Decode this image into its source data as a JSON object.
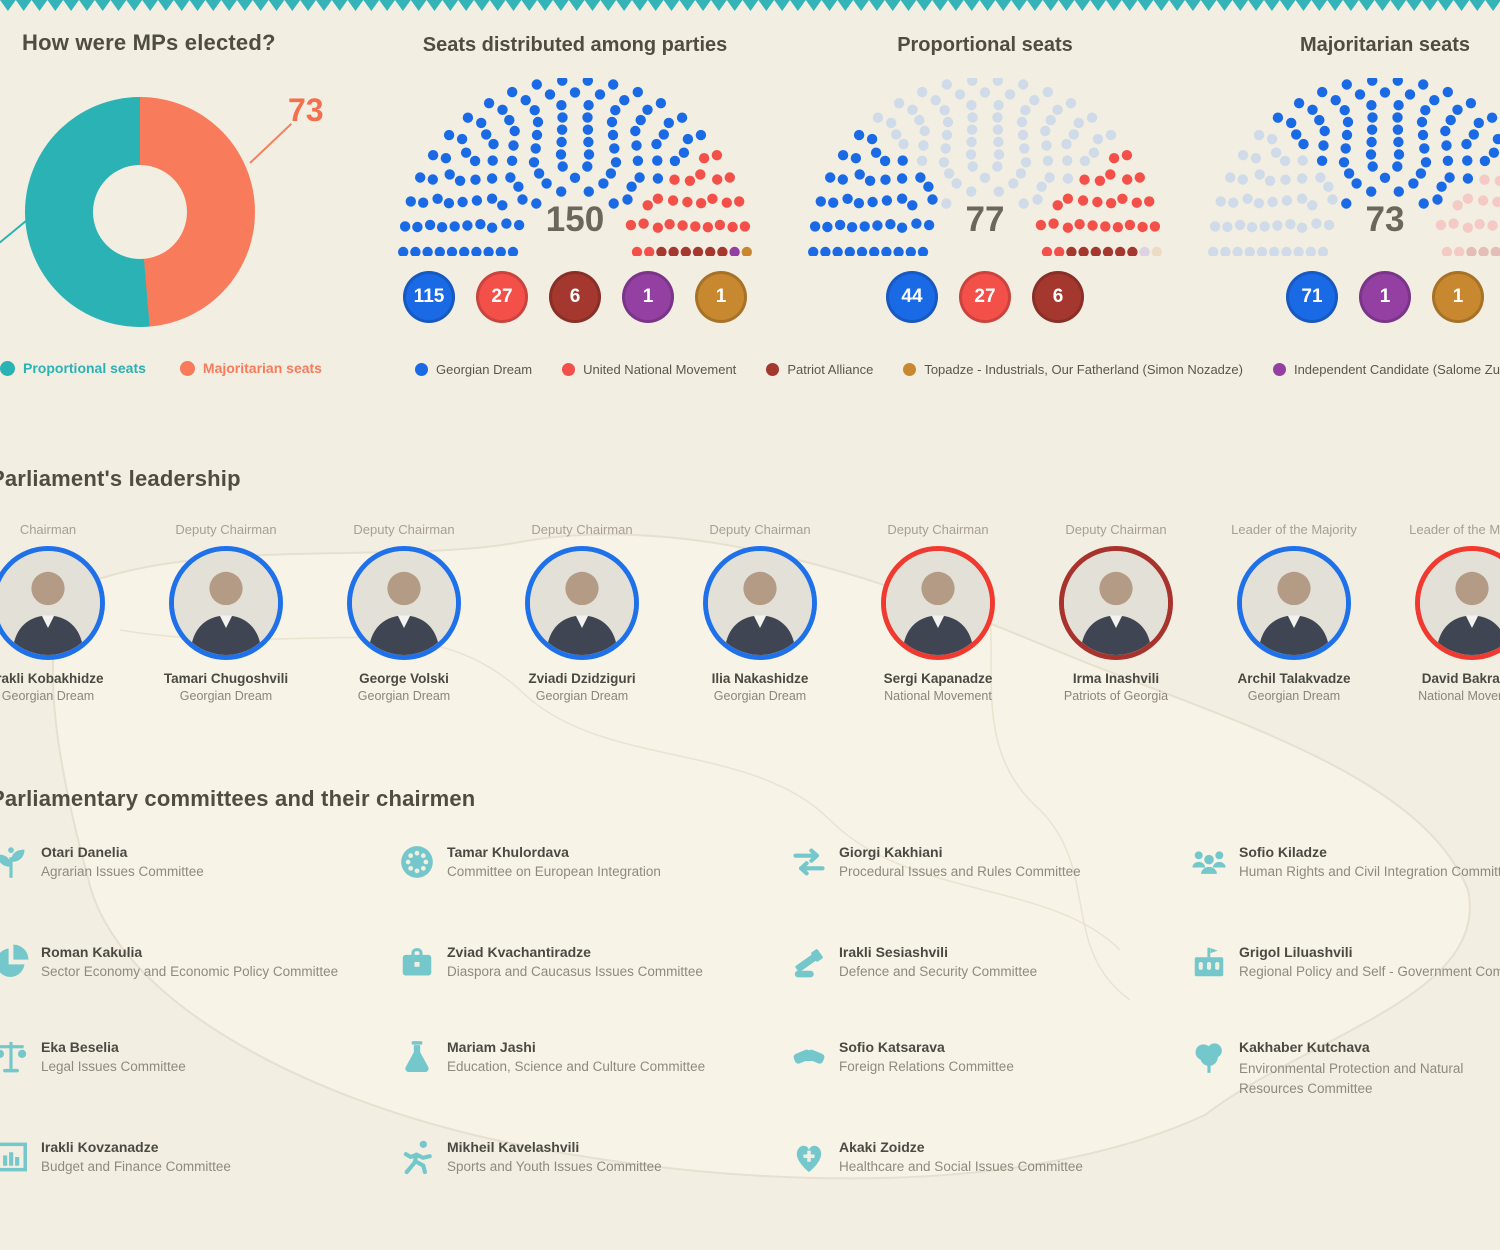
{
  "colors": {
    "background": "#f2eee2",
    "teal": "#2ab2b5",
    "salmon": "#f87b5b",
    "callout_orange": "#f46f4b",
    "blue": "#1a6ae6",
    "red": "#f4504a",
    "dark_red": "#a4382f",
    "purple": "#9340a2",
    "orange": "#c8882f",
    "faded_blue": "#cfdbe9",
    "faded_red": "#f5c9c4",
    "faded_dark_red": "#e2beb6",
    "faded_purple": "#dcd2e2",
    "faded_orange": "#ecdcc4",
    "icon_teal": "#74c7cb",
    "zigzag_teal": "#35b4b8"
  },
  "chart_data": [
    {
      "type": "donut",
      "title": "How were MPs elected?",
      "slices": [
        {
          "label": "Proportional seats",
          "value": 77,
          "color": "#2ab2b5"
        },
        {
          "label": "Majoritarian seats",
          "value": 73,
          "color": "#f87b5b"
        }
      ],
      "callout": {
        "text": "73",
        "color": "#f46f4b"
      }
    },
    {
      "type": "parliament",
      "title": "Seats distributed among parties",
      "center_label": "150",
      "total": 150,
      "groups": [
        {
          "label": "Georgian Dream",
          "count": 115,
          "color": "#1a6ae6"
        },
        {
          "label": "United National Movement",
          "count": 27,
          "color": "#f4504a"
        },
        {
          "label": "Patriot Alliance",
          "count": 6,
          "color": "#a4382f"
        },
        {
          "label": "Independent Candidate (Salome Zurabishvili)",
          "count": 1,
          "color": "#9340a2"
        },
        {
          "label": "Topadze - Industrials, Our Fatherland (Simon Nozadze)",
          "count": 1,
          "color": "#c8882f"
        }
      ],
      "badges": [
        {
          "value": "115",
          "color": "#1a6ae6"
        },
        {
          "value": "27",
          "color": "#f4504a"
        },
        {
          "value": "6",
          "color": "#a4382f"
        },
        {
          "value": "1",
          "color": "#9340a2"
        },
        {
          "value": "1",
          "color": "#c8882f"
        }
      ]
    },
    {
      "type": "parliament",
      "title": "Proportional seats",
      "center_label": "77",
      "total": 150,
      "groups": [
        {
          "label": "Georgian Dream",
          "count": 44,
          "color": "#1a6ae6"
        },
        {
          "label": "",
          "count": 71,
          "color": "#cfdbe9"
        },
        {
          "label": "United National Movement",
          "count": 27,
          "color": "#f4504a"
        },
        {
          "label": "Patriot Alliance",
          "count": 6,
          "color": "#a4382f"
        },
        {
          "label": "",
          "count": 1,
          "color": "#dcd2e2"
        },
        {
          "label": "",
          "count": 1,
          "color": "#ecdcc4"
        }
      ],
      "badges": [
        {
          "value": "44",
          "color": "#1a6ae6"
        },
        {
          "value": "27",
          "color": "#f4504a"
        },
        {
          "value": "6",
          "color": "#a4382f"
        }
      ]
    },
    {
      "type": "parliament",
      "title": "Majoritarian seats",
      "center_label": "73",
      "total": 150,
      "groups": [
        {
          "label": "",
          "count": 44,
          "color": "#cfdbe9"
        },
        {
          "label": "Georgian Dream",
          "count": 71,
          "color": "#1a6ae6"
        },
        {
          "label": "",
          "count": 27,
          "color": "#f5c9c4"
        },
        {
          "label": "",
          "count": 6,
          "color": "#e2beb6"
        },
        {
          "label": "Independent Candidate",
          "count": 1,
          "color": "#9340a2"
        },
        {
          "label": "Topadze",
          "count": 1,
          "color": "#c8882f"
        }
      ],
      "badges": [
        {
          "value": "71",
          "color": "#1a6ae6"
        },
        {
          "value": "1",
          "color": "#9340a2"
        },
        {
          "value": "1",
          "color": "#c8882f"
        }
      ]
    }
  ],
  "party_legend": [
    {
      "label": "Georgian Dream",
      "color": "#1a6ae6"
    },
    {
      "label": "United National Movement",
      "color": "#f4504a"
    },
    {
      "label": "Patriot Alliance",
      "color": "#a4382f"
    },
    {
      "label": "Topadze - Industrials, Our Fatherland (Simon Nozadze)",
      "color": "#c8882f"
    },
    {
      "label": "Independent Candidate (Salome Zurabishvili)",
      "color": "#9340a2"
    }
  ],
  "leadership": {
    "title": "Parliament's leadership",
    "members": [
      {
        "role": "Chairman",
        "name": "Irakli Kobakhidze",
        "party": "Georgian Dream",
        "border": "#1f71e9"
      },
      {
        "role": "Deputy Chairman",
        "name": "Tamari Chugoshvili",
        "party": "Georgian Dream",
        "border": "#1f71e9"
      },
      {
        "role": "Deputy Chairman",
        "name": "George Volski",
        "party": "Georgian Dream",
        "border": "#1f71e9"
      },
      {
        "role": "Deputy Chairman",
        "name": "Zviadi Dzidziguri",
        "party": "Georgian Dream",
        "border": "#1f71e9"
      },
      {
        "role": "Deputy Chairman",
        "name": "Ilia Nakashidze",
        "party": "Georgian Dream",
        "border": "#1f71e9"
      },
      {
        "role": "Deputy Chairman",
        "name": "Sergi Kapanadze",
        "party": "National Movement",
        "border": "#f0392f"
      },
      {
        "role": "Deputy Chairman",
        "name": "Irma Inashvili",
        "party": "Patriots of Georgia",
        "border": "#a8322c"
      },
      {
        "role": "Leader of the Majority",
        "name": "Archil Talakvadze",
        "party": "Georgian Dream",
        "border": "#1f71e9"
      },
      {
        "role": "Leader of the Minority",
        "name": "David Bakradze",
        "party": "National Movement",
        "border": "#f0392f"
      }
    ]
  },
  "committees": {
    "title": "Parliamentary committees and their chairmen",
    "columns": [
      [
        {
          "name": "Otari Danelia",
          "committee": "Agrarian Issues Committee",
          "icon": "plant-icon"
        },
        {
          "name": "Roman Kakulia",
          "committee": "Sector Economy and Economic Policy Committee",
          "icon": "pie-chart-icon"
        },
        {
          "name": "Eka Beselia",
          "committee": "Legal Issues Committee",
          "icon": "scales-icon"
        },
        {
          "name": "Irakli Kovzanadze",
          "committee": "Budget and Finance Committee",
          "icon": "bar-chart-icon"
        }
      ],
      [
        {
          "name": "Tamar Khulordava",
          "committee": "Committee on European Integration",
          "icon": "eu-stars-icon"
        },
        {
          "name": "Zviad Kvachantiradze",
          "committee": "Diaspora and Caucasus Issues Committee",
          "icon": "briefcase-icon"
        },
        {
          "name": "Mariam Jashi",
          "committee": "Education, Science and Culture Committee",
          "icon": "flask-icon"
        },
        {
          "name": "Mikheil Kavelashvili",
          "committee": "Sports and Youth Issues Committee",
          "icon": "runner-icon"
        }
      ],
      [
        {
          "name": "Giorgi Kakhiani",
          "committee": "Procedural Issues and Rules Committee",
          "icon": "swap-arrows-icon"
        },
        {
          "name": "Irakli Sesiashvili",
          "committee": "Defence and Security Committee",
          "icon": "tank-icon"
        },
        {
          "name": "Sofio Katsarava",
          "committee": "Foreign Relations Committee",
          "icon": "handshake-icon"
        },
        {
          "name": "Akaki Zoidze",
          "committee": "Healthcare and Social Issues Committee",
          "icon": "heart-cross-icon"
        }
      ],
      [
        {
          "name": "Sofio Kiladze",
          "committee": "Human Rights and Civil Integration Committee",
          "icon": "people-icon"
        },
        {
          "name": "Grigol Liluashvili",
          "committee": "Regional Policy and Self - Government Committee",
          "icon": "building-icon"
        },
        {
          "name": "Kakhaber Kutchava",
          "committee": "Environmental Protection and Natural Resources Committee",
          "icon": "tree-icon"
        }
      ]
    ]
  }
}
